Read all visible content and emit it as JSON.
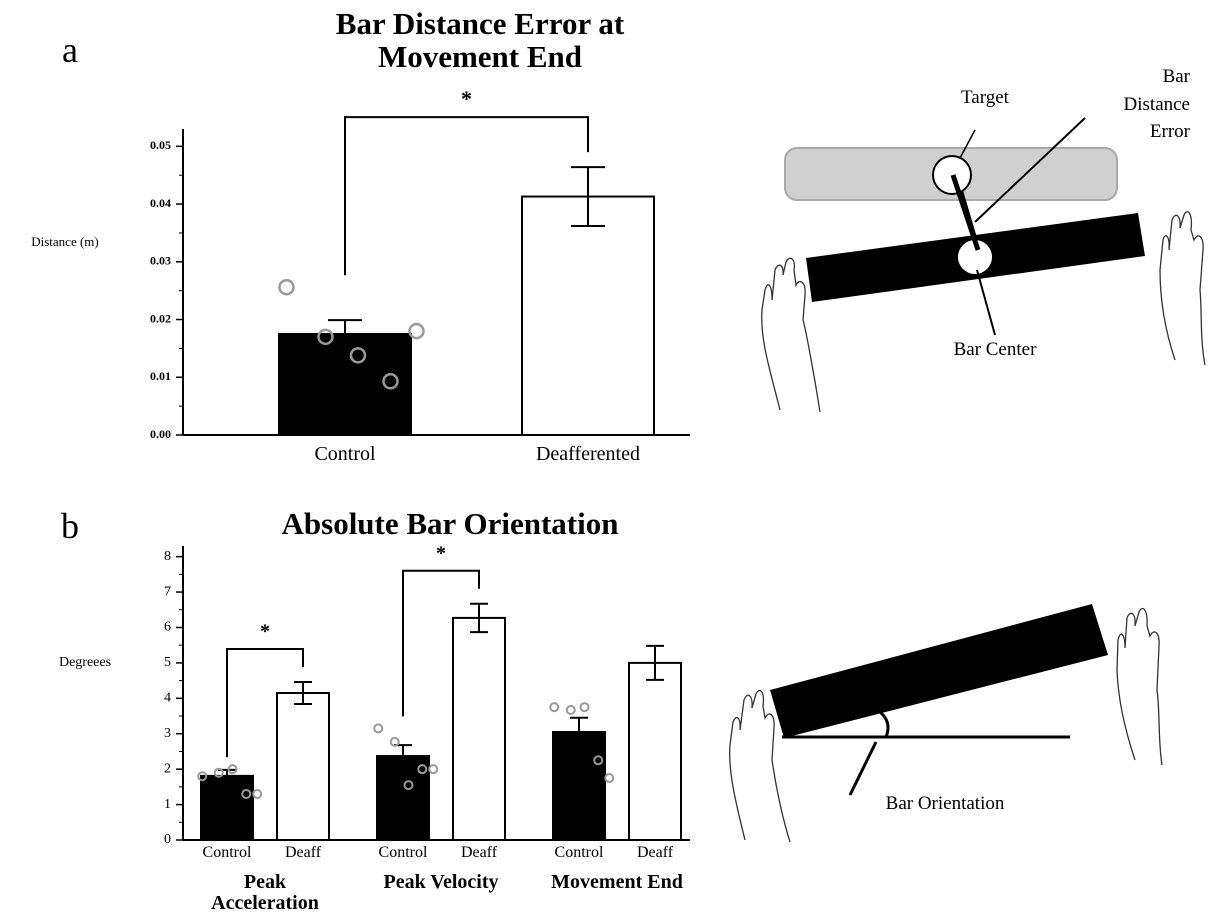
{
  "panel_labels": [
    "a",
    "b"
  ],
  "chart_data": [
    {
      "type": "bar",
      "title": "Bar Distance Error at Movement End",
      "ylabel": "Distance (m)",
      "categories": [
        "Control",
        "Deafferented"
      ],
      "values": [
        0.0175,
        0.0413
      ],
      "errors": [
        0.0024,
        0.0051
      ],
      "colors": [
        "#000000",
        "#ffffff"
      ],
      "point_values": [
        [
          0.0256,
          0.017,
          0.0138,
          0.0093,
          0.018
        ],
        []
      ],
      "ylim": [
        0,
        0.053
      ],
      "yticks": [
        {
          "value": 0,
          "label": "0.00"
        },
        0.01,
        0.02,
        0.03,
        0.04,
        0.05
      ],
      "significance": [
        {
          "between": [
            "Control",
            "Deafferented"
          ],
          "label": "*"
        }
      ]
    },
    {
      "type": "grouped_bar",
      "title": "Absolute Bar Orientation",
      "ylabel": "Degreees",
      "categories": [
        "Peak Acceleration",
        "Peak Velocity",
        "Movement End"
      ],
      "series": [
        {
          "name": "Control",
          "color": "#000000",
          "values": [
            1.81,
            2.37,
            3.05
          ],
          "errors": [
            0.17,
            0.31,
            0.4
          ],
          "points": [
            [
              1.8,
              1.9,
              2.0,
              1.3,
              1.3
            ],
            [
              3.15,
              2.77,
              1.55,
              2.0,
              2.0
            ],
            [
              3.75,
              3.67,
              3.75,
              2.25,
              1.75
            ]
          ]
        },
        {
          "name": "Deaff",
          "color": "#ffffff",
          "values": [
            4.15,
            6.27,
            5.0
          ],
          "errors": [
            0.31,
            0.4,
            0.48
          ]
        }
      ],
      "ylim": [
        0,
        8.3
      ],
      "yticks": [
        0,
        1,
        2,
        3,
        4,
        5,
        6,
        7,
        8
      ],
      "significance": [
        {
          "category": "Peak Acceleration",
          "label": "*"
        },
        {
          "category": "Peak Velocity",
          "label": "*"
        }
      ]
    }
  ],
  "diagrams": {
    "distance": {
      "target": "Target",
      "error": "Bar Distance Error",
      "center": "Bar Center"
    },
    "orientation": {
      "label": "Bar Orientation"
    }
  }
}
